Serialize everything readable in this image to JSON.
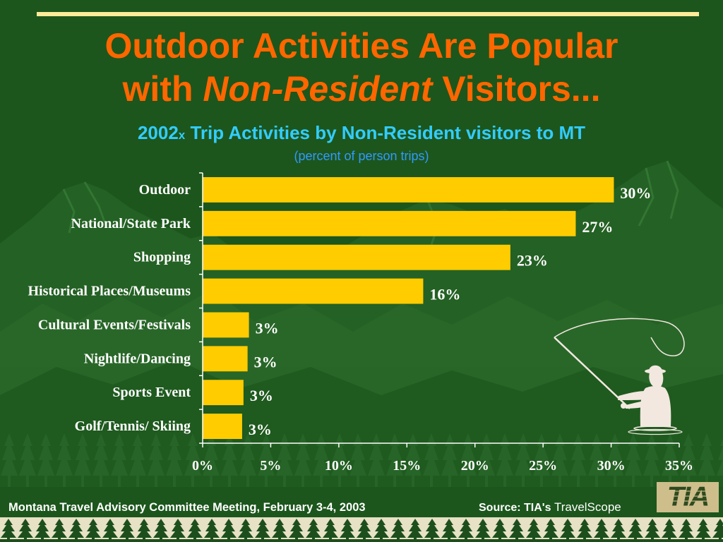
{
  "slide": {
    "title_line1": "Outdoor Activities Are Popular",
    "title_line2_prefix": "with ",
    "title_line2_emphasis": "Non-Resident",
    "title_line2_suffix": " Visitors...",
    "chart_title_year": "2002",
    "chart_title_marker": "x",
    "chart_title_text": " Trip Activities by Non-Resident visitors to MT",
    "chart_note": "(percent of person trips)"
  },
  "footer": {
    "meeting": "Montana Travel Advisory Committee Meeting, February 3-4, 2003",
    "source_label": "Source: TIA's",
    "source_name": "TravelScope"
  },
  "logo": {
    "text": "TIA"
  },
  "illustration": {
    "icon": "fly-fisherman"
  },
  "colors": {
    "background": "#1C561C",
    "title": "#FF6600",
    "chart_title": "#33CCFF",
    "chart_note": "#3399FF",
    "bar": "#FFCC00",
    "axis": "#FFFFFF",
    "rule": "#FFEB99",
    "text": "#FFFFFF"
  },
  "chart_data": {
    "type": "bar",
    "orientation": "horizontal",
    "categories": [
      "Outdoor",
      "National/State Park",
      "Shopping",
      "Historical Places/Museums",
      "Cultural Events/Festivals",
      "Nightlife/Dancing",
      "Sports Event",
      "Golf/Tennis/ Skiing"
    ],
    "values": [
      30.2,
      27.4,
      22.6,
      16.2,
      3.4,
      3.3,
      3.0,
      2.9
    ],
    "data_labels": [
      "30%",
      "27%",
      "23%",
      "16%",
      "3%",
      "3%",
      "3%",
      "3%"
    ],
    "x_ticks": [
      0,
      5,
      10,
      15,
      20,
      25,
      30,
      35
    ],
    "x_tick_labels": [
      "0%",
      "5%",
      "10%",
      "15%",
      "20%",
      "25%",
      "30%",
      "35%"
    ],
    "xlim": [
      0,
      35
    ],
    "grid": false,
    "legend": "none"
  }
}
